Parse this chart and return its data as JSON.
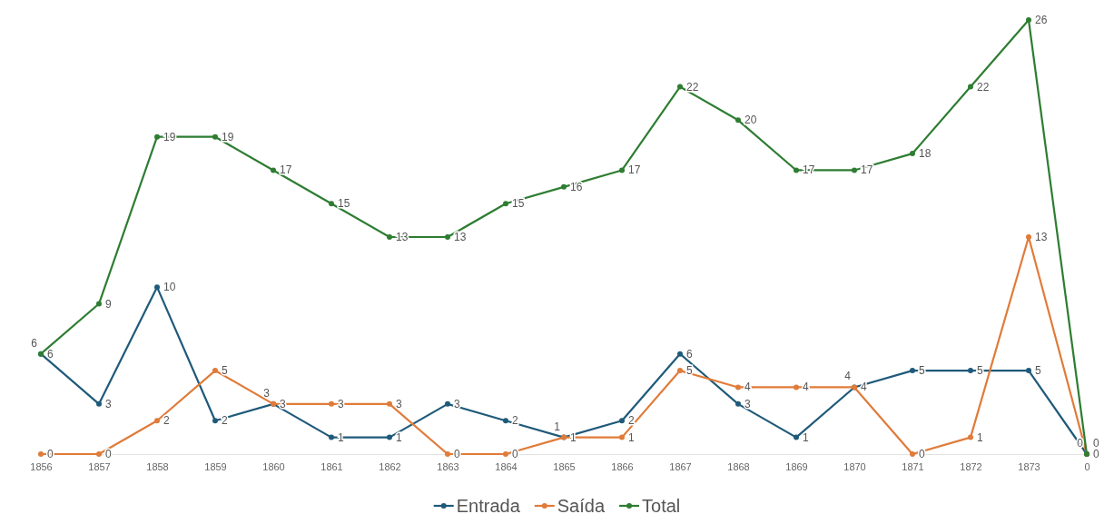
{
  "chart_data": {
    "type": "line",
    "categories": [
      "1856",
      "1857",
      "1858",
      "1859",
      "1860",
      "1861",
      "1862",
      "1863",
      "1864",
      "1865",
      "1866",
      "1867",
      "1868",
      "1869",
      "1870",
      "1871",
      "1872",
      "1873",
      "0"
    ],
    "series": [
      {
        "name": "Entrada",
        "color": "#1f5a7a",
        "values": [
          6,
          3,
          10,
          2,
          3,
          1,
          1,
          3,
          2,
          1,
          2,
          6,
          3,
          1,
          4,
          5,
          5,
          5,
          0
        ]
      },
      {
        "name": "Saída",
        "color": "#e07b39",
        "values": [
          0,
          0,
          2,
          5,
          3,
          3,
          3,
          0,
          0,
          1,
          1,
          5,
          4,
          4,
          4,
          0,
          1,
          13,
          0
        ]
      },
      {
        "name": "Total",
        "color": "#2e7d32",
        "values": [
          6,
          9,
          19,
          19,
          17,
          15,
          13,
          13,
          15,
          16,
          17,
          22,
          20,
          17,
          17,
          18,
          22,
          26,
          0
        ]
      }
    ],
    "tick_labels": "x",
    "data_labels": true,
    "marker": "circle",
    "line_style": "solid",
    "legend": "bottom"
  }
}
